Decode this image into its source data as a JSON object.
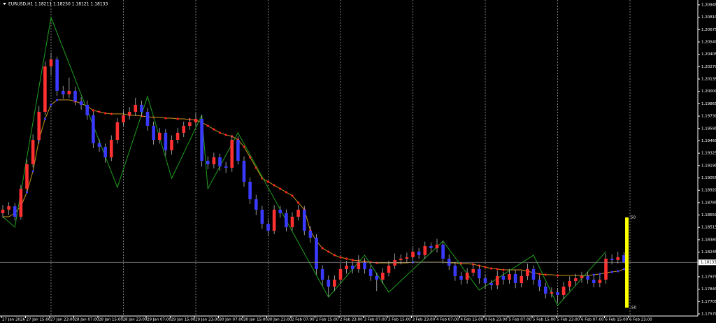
{
  "chart_data": {
    "type": "candlestick",
    "title": "EURUSD,H1 1.18211 1.18250 1.18121 1.18133",
    "categories": [
      "27 Jan 2026",
      null,
      null,
      null,
      "27 Jan 15:00",
      null,
      null,
      null,
      "27 Jan 23:00",
      null,
      null,
      null,
      "28 Jan 07:00",
      null,
      null,
      null,
      "28 Jan 15:00",
      null,
      null,
      null,
      "28 Jan 23:00",
      null,
      null,
      null,
      "29 Jan 07:00",
      null,
      null,
      null,
      "29 Jan 15:00",
      null,
      null,
      null,
      "29 Jan 23:00",
      null,
      null,
      null,
      "30 Jan 07:00",
      null,
      null,
      null,
      "30 Jan 15:00",
      null,
      null,
      null,
      "30 Jan 23:00",
      null,
      null,
      null,
      "2 Feb 07:00",
      null,
      null,
      null,
      "2 Feb 15:00",
      null,
      null,
      null,
      "2 Feb 23:00",
      null,
      null,
      null,
      "3 Feb 07:00",
      null,
      null,
      null,
      "3 Feb 15:00",
      null,
      null,
      null,
      "3 Feb 23:00",
      null,
      null,
      null,
      "4 Feb 07:00",
      null,
      null,
      null,
      "4 Feb 15:00",
      null,
      null,
      null,
      "4 Feb 23:00",
      null,
      null,
      null,
      "5 Feb 07:00",
      null,
      null,
      null,
      "5 Feb 15:00",
      null,
      null,
      null,
      "5 Feb 23:00",
      null,
      null,
      null,
      "6 Feb 07:00",
      null,
      null,
      null,
      "6 Feb 15:00",
      null,
      null,
      null,
      "6 Feb 23:00"
    ],
    "candles": {
      "up_color": "#ff3030",
      "down_color": "#3a3aff",
      "wick_color": "#bbbbbb",
      "open": [
        1.1867,
        1.18708,
        1.18746,
        1.18631,
        1.18937,
        1.19204,
        1.19471,
        1.19777,
        1.20273,
        1.20349,
        1.20006,
        1.19968,
        1.20006,
        1.19891,
        1.19853,
        1.19739,
        1.19433,
        1.19395,
        1.1928,
        1.19471,
        1.19662,
        1.19739,
        1.19777,
        1.19853,
        1.19777,
        1.19624,
        1.19471,
        1.19548,
        1.19357,
        1.19471,
        1.19548,
        1.19624,
        1.19662,
        1.197,
        1.19242,
        1.19204,
        1.1928,
        1.19181,
        1.19166,
        1.19471,
        1.19242,
        1.19013,
        1.18822,
        1.18708,
        1.18555,
        1.18478,
        1.18708,
        1.1867,
        1.18517,
        1.18631,
        1.18708,
        1.18478,
        1.18402,
        1.18059,
        1.17944,
        1.17868,
        1.17944,
        1.18059,
        1.18097,
        1.18059,
        1.18135,
        1.18059,
        1.17983,
        1.17944,
        1.1802,
        1.18097,
        1.18158,
        1.18173,
        1.18189,
        1.1825,
        1.18212,
        1.18311,
        1.18288,
        1.18326,
        1.18173,
        1.18097,
        1.17983,
        1.17944,
        1.1802,
        1.18059,
        1.17959,
        1.17906,
        1.17883,
        1.17983,
        1.17944,
        1.18005,
        1.17906,
        1.17983,
        1.18059,
        1.17944,
        1.17868,
        1.17792,
        1.17807,
        1.17776,
        1.17868,
        1.17929,
        1.17959,
        1.17983,
        1.17944,
        1.17906,
        1.17944,
        1.18173,
        1.18158,
        1.18211,
        null
      ],
      "high": [
        1.1876,
        1.1879,
        1.1878,
        1.1898,
        1.1926,
        1.1953,
        1.1984,
        1.2033,
        1.2042,
        1.2038,
        1.2006,
        1.2015,
        1.2005,
        1.1994,
        1.199,
        1.1978,
        1.1948,
        1.1943,
        1.1952,
        1.1971,
        1.1979,
        1.1983,
        1.1993,
        1.199,
        1.1982,
        1.1967,
        1.196,
        1.1959,
        1.1952,
        1.196,
        1.1967,
        1.1971,
        1.1976,
        1.1974,
        1.1929,
        1.1933,
        1.1932,
        1.1923,
        1.1952,
        1.1951,
        1.1929,
        1.1906,
        1.1887,
        1.1875,
        1.186,
        1.1876,
        1.1875,
        1.1871,
        1.1868,
        1.1876,
        1.1875,
        1.1853,
        1.1844,
        1.181,
        1.1799,
        1.1799,
        1.1811,
        1.1815,
        1.1814,
        1.1821,
        1.1818,
        1.181,
        1.1802,
        1.1807,
        1.1815,
        1.1823,
        1.1822,
        1.1824,
        1.183,
        1.1829,
        1.1836,
        1.1835,
        1.1839,
        1.1837,
        1.1822,
        1.1814,
        1.1803,
        1.1807,
        1.1811,
        1.181,
        1.18,
        1.1794,
        1.1804,
        1.1803,
        1.1806,
        1.1805,
        1.1804,
        1.1812,
        1.181,
        1.1799,
        1.1791,
        1.1786,
        1.1785,
        1.1792,
        1.1798,
        1.1801,
        1.1803,
        1.1803,
        1.1799,
        1.1799,
        1.1823,
        1.1822,
        1.1825,
        1.1825,
        null
      ],
      "low": [
        1.1862,
        1.1865,
        1.1859,
        1.186,
        1.189,
        1.1917,
        1.1943,
        1.1974,
        1.2018,
        1.1995,
        1.1992,
        1.1993,
        1.1985,
        1.198,
        1.1969,
        1.1938,
        1.1934,
        1.1922,
        1.1924,
        1.1943,
        1.1962,
        1.1969,
        1.1973,
        1.1973,
        1.1957,
        1.1942,
        1.1943,
        1.193,
        1.1931,
        1.1943,
        1.195,
        1.1958,
        1.1962,
        1.1918,
        1.1915,
        1.1916,
        1.1913,
        1.1911,
        1.1912,
        1.192,
        1.1896,
        1.1877,
        1.1865,
        1.185,
        1.1842,
        1.1844,
        1.1862,
        1.1847,
        1.1848,
        1.1859,
        1.1843,
        1.1835,
        1.18,
        1.1788,
        1.1776,
        1.1782,
        1.179,
        1.1801,
        1.1801,
        1.1802,
        1.1801,
        1.1793,
        1.1782,
        1.179,
        1.1798,
        1.1806,
        1.1811,
        1.1813,
        1.1815,
        1.1817,
        1.1817,
        1.1824,
        1.1824,
        1.1812,
        1.1805,
        1.1793,
        1.1789,
        1.179,
        1.1798,
        1.179,
        1.1784,
        1.1783,
        1.1784,
        1.1789,
        1.179,
        1.1785,
        1.1786,
        1.1794,
        1.1789,
        1.1782,
        1.1774,
        1.1775,
        1.1769,
        1.1773,
        1.1782,
        1.1788,
        1.1791,
        1.179,
        1.1786,
        1.1786,
        1.179,
        1.1811,
        1.1812,
        1.18121,
        null
      ],
      "close": [
        1.18708,
        1.18746,
        1.18631,
        1.18937,
        1.19204,
        1.19471,
        1.19777,
        1.20273,
        1.20349,
        1.20006,
        1.19968,
        1.20006,
        1.19891,
        1.19853,
        1.19739,
        1.19433,
        1.19395,
        1.1928,
        1.19471,
        1.19662,
        1.19739,
        1.19777,
        1.19853,
        1.19777,
        1.19624,
        1.19471,
        1.19548,
        1.19357,
        1.19471,
        1.19548,
        1.19624,
        1.19662,
        1.197,
        1.19242,
        1.19204,
        1.1928,
        1.19181,
        1.19166,
        1.19471,
        1.19242,
        1.19013,
        1.18822,
        1.18708,
        1.18555,
        1.18478,
        1.18708,
        1.1867,
        1.18517,
        1.18631,
        1.18708,
        1.18478,
        1.18402,
        1.18059,
        1.17944,
        1.17868,
        1.17944,
        1.18059,
        1.18097,
        1.18059,
        1.18135,
        1.18059,
        1.17983,
        1.17944,
        1.1802,
        1.18097,
        1.18158,
        1.18173,
        1.18189,
        1.1825,
        1.18212,
        1.18311,
        1.18288,
        1.18326,
        1.18173,
        1.18097,
        1.17983,
        1.17944,
        1.1802,
        1.18059,
        1.17959,
        1.17906,
        1.17883,
        1.17983,
        1.17944,
        1.18005,
        1.17906,
        1.17983,
        1.18059,
        1.17944,
        1.17868,
        1.17792,
        1.17807,
        1.17776,
        1.17868,
        1.17929,
        1.17959,
        1.17983,
        1.17944,
        1.17906,
        1.17944,
        1.18173,
        1.18158,
        1.18189,
        1.18133,
        null
      ]
    },
    "ma": {
      "color": "#c8961e",
      "up_color": "#3a3aff",
      "down_color": "#ff2020",
      "values": [
        1.18631,
        1.18631,
        1.1867,
        1.18746,
        1.18899,
        1.19128,
        1.19471,
        1.197,
        1.19853,
        1.19907,
        1.19907,
        1.19907,
        1.19891,
        1.19868,
        1.19838,
        1.19792,
        1.19777,
        1.19761,
        1.19754,
        1.19754,
        1.19754,
        1.19739,
        1.19739,
        1.19731,
        1.19723,
        1.19716,
        1.19716,
        1.19708,
        1.19708,
        1.197,
        1.197,
        1.19693,
        1.19685,
        1.19662,
        1.19624,
        1.19586,
        1.19548,
        1.19525,
        1.19509,
        1.19471,
        1.19395,
        1.1928,
        1.19166,
        1.19051,
        1.19013,
        1.18975,
        1.18937,
        1.18899,
        1.1886,
        1.18784,
        1.18708,
        1.18478,
        1.18364,
        1.18288,
        1.1825,
        1.18211,
        1.18188,
        1.18173,
        1.18158,
        1.1815,
        1.18143,
        1.18135,
        1.18127,
        1.18127,
        1.18127,
        1.18127,
        1.18127,
        1.18127,
        1.18135,
        1.18135,
        1.18135,
        1.18135,
        1.18135,
        1.18135,
        1.18127,
        1.18127,
        1.1812,
        1.1812,
        1.18112,
        1.18097,
        1.18082,
        1.18066,
        1.18059,
        1.18051,
        1.18051,
        1.18051,
        1.18051,
        1.18036,
        1.1802,
        1.18005,
        1.17998,
        1.17998,
        1.1799,
        1.1799,
        1.1799,
        1.1799,
        1.1799,
        1.1799,
        1.17998,
        1.18005,
        1.1802,
        1.18028,
        1.18036,
        1.18059,
        null
      ]
    },
    "zigzag": {
      "color": "#1fa01f",
      "x": [
        0,
        2,
        8,
        19,
        24,
        28,
        33,
        34,
        39,
        54,
        60,
        64,
        73,
        79,
        88,
        92,
        100
      ],
      "values": [
        1.18631,
        1.18517,
        1.20808,
        1.18952,
        1.19945,
        1.19051,
        1.19739,
        1.18937,
        1.19548,
        1.17753,
        1.18211,
        1.17807,
        1.18364,
        1.1783,
        1.18211,
        1.17662,
        1.1825
      ]
    },
    "gauge": {
      "values": [
        50,
        -50
      ],
      "color": "#ffff00"
    },
    "ylim": [
      1.17547,
      1.20998
    ],
    "yticks": [
      1.20945,
      {
        "value": 1.2081,
        "label": "1.20810"
      },
      1.20675,
      {
        "value": 1.2054,
        "label": "1.20540"
      },
      1.20405,
      {
        "value": 1.2027,
        "label": "1.20270"
      },
      1.20135,
      {
        "value": 1.2,
        "label": "1.20000"
      },
      1.19865,
      {
        "value": 1.1973,
        "label": "1.19730"
      },
      1.19595,
      {
        "value": 1.1946,
        "label": "1.19460"
      },
      1.19325,
      {
        "value": 1.1919,
        "label": "1.19190"
      },
      1.19055,
      {
        "value": 1.1892,
        "label": "1.18920"
      },
      1.18785,
      {
        "value": 1.1865,
        "label": "1.18650"
      },
      1.18515,
      {
        "value": 1.1838,
        "label": "1.18380"
      },
      1.18245,
      1.17975,
      {
        "value": 1.1784,
        "label": "1.17840"
      },
      1.17705,
      {
        "value": 1.1757,
        "label": "1.17570"
      }
    ]
  }
}
